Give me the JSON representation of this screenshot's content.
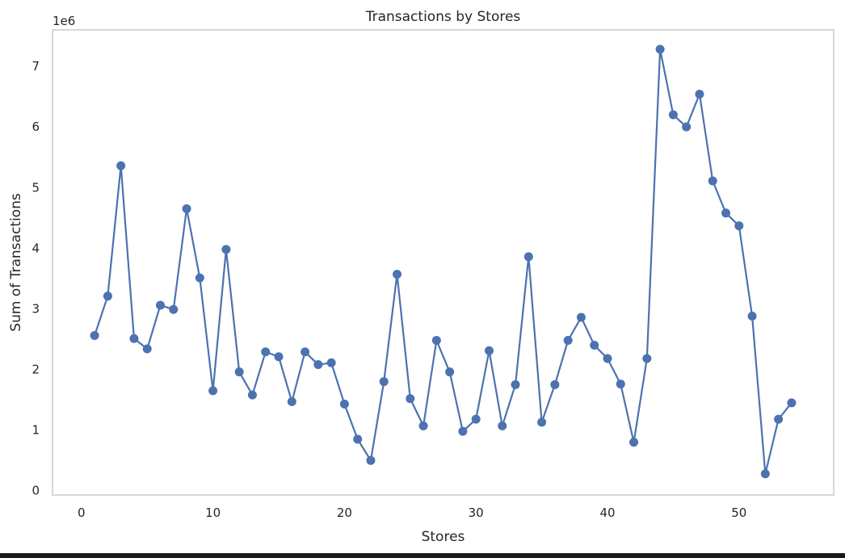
{
  "chart_data": {
    "type": "line",
    "title": "Transactions by Stores",
    "xlabel": "Stores",
    "ylabel": "Sum of Transactions",
    "y_offset_text": "1e6",
    "y_scale": 1000000,
    "xlim": [
      -2.2,
      57.2
    ],
    "ylim": [
      -0.07,
      7.6
    ],
    "x_ticks": [
      0,
      10,
      20,
      30,
      40,
      50
    ],
    "y_ticks": [
      0,
      1,
      2,
      3,
      4,
      5,
      6,
      7
    ],
    "grid": false,
    "legend": "none",
    "series": [
      {
        "color": "#4c72b0",
        "marker": "circle",
        "x": [
          1,
          2,
          3,
          4,
          5,
          6,
          7,
          8,
          9,
          10,
          11,
          12,
          13,
          14,
          15,
          16,
          17,
          18,
          19,
          20,
          21,
          22,
          23,
          24,
          25,
          26,
          27,
          28,
          29,
          30,
          31,
          32,
          33,
          34,
          35,
          36,
          37,
          38,
          39,
          40,
          41,
          42,
          43,
          44,
          45,
          46,
          47,
          48,
          49,
          50,
          51,
          52,
          53,
          54
        ],
        "values": [
          2.56,
          3.21,
          5.36,
          2.51,
          2.34,
          3.06,
          2.99,
          4.65,
          3.51,
          1.65,
          3.98,
          1.96,
          1.58,
          2.29,
          2.21,
          1.47,
          2.29,
          2.08,
          2.11,
          1.43,
          0.85,
          0.5,
          1.8,
          3.57,
          1.52,
          1.07,
          2.48,
          1.96,
          0.98,
          1.18,
          2.31,
          1.07,
          1.75,
          3.86,
          1.13,
          1.75,
          2.48,
          2.86,
          2.4,
          2.18,
          1.76,
          0.8,
          2.18,
          7.28,
          6.2,
          6.0,
          6.54,
          5.11,
          4.58,
          4.37,
          2.88,
          0.28,
          1.18,
          1.45
        ]
      }
    ]
  }
}
